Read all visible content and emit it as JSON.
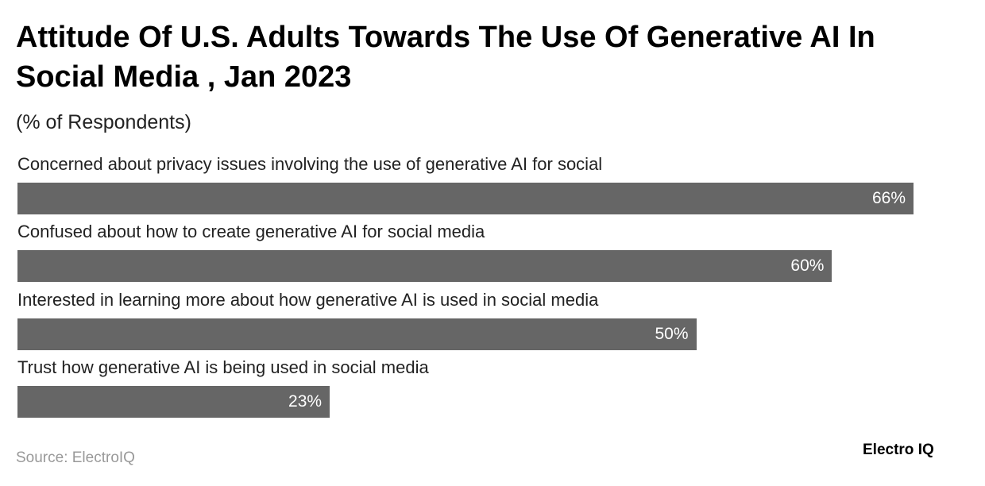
{
  "chart_data": {
    "type": "bar",
    "orientation": "horizontal",
    "title": "Attitude Of U.S. Adults Towards The Use Of Generative AI In Social Media , Jan 2023",
    "subtitle": "(% of Respondents)",
    "categories": [
      "Concerned about privacy issues involving the use of generative AI for social",
      "Confused about how to create generative AI for social media",
      "Interested in learning more about how generative AI is used in social media",
      "Trust how generative AI is being used in social media"
    ],
    "values": [
      66,
      60,
      50,
      23
    ],
    "value_labels": [
      "66%",
      "60%",
      "50%",
      "23%"
    ],
    "color": "#666666",
    "source": "Source: ElectroIQ",
    "brand": "Electro IQ"
  }
}
